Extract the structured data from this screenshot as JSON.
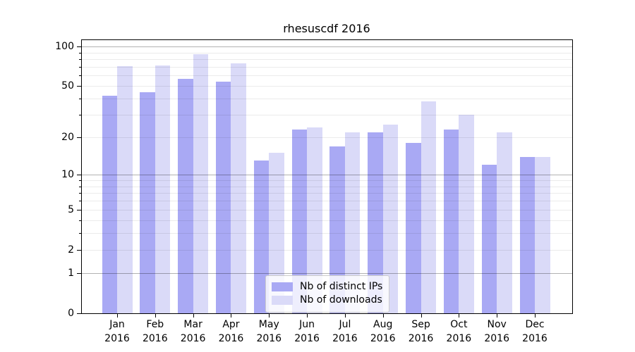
{
  "chart_data": {
    "type": "bar",
    "title": "rhesuscdf 2016",
    "categories": [
      "Jan",
      "Feb",
      "Mar",
      "Apr",
      "May",
      "Jun",
      "Jul",
      "Aug",
      "Sep",
      "Oct",
      "Nov",
      "Dec"
    ],
    "category_year": "2016",
    "series": [
      {
        "name": "Nb of distinct IPs",
        "color": "#a9a9f4",
        "values": [
          42,
          45,
          57,
          54,
          13,
          23,
          17,
          22,
          18,
          23,
          12,
          14
        ]
      },
      {
        "name": "Nb of downloads",
        "color": "#dadaf8",
        "values": [
          71,
          72,
          87,
          74,
          15,
          24,
          22,
          25,
          38,
          30,
          22,
          14
        ]
      }
    ],
    "yticks": [
      0,
      1,
      2,
      5,
      10,
      20,
      50,
      100
    ],
    "ylim": [
      0,
      100
    ],
    "yscale": "log10(value+1)",
    "grid": {
      "major_lines": [
        1,
        10,
        100
      ],
      "minor_lines": [
        2,
        3,
        4,
        5,
        6,
        7,
        8,
        9,
        20,
        30,
        40,
        50,
        60,
        70,
        80,
        90
      ]
    },
    "legend_position": "lower-center"
  }
}
